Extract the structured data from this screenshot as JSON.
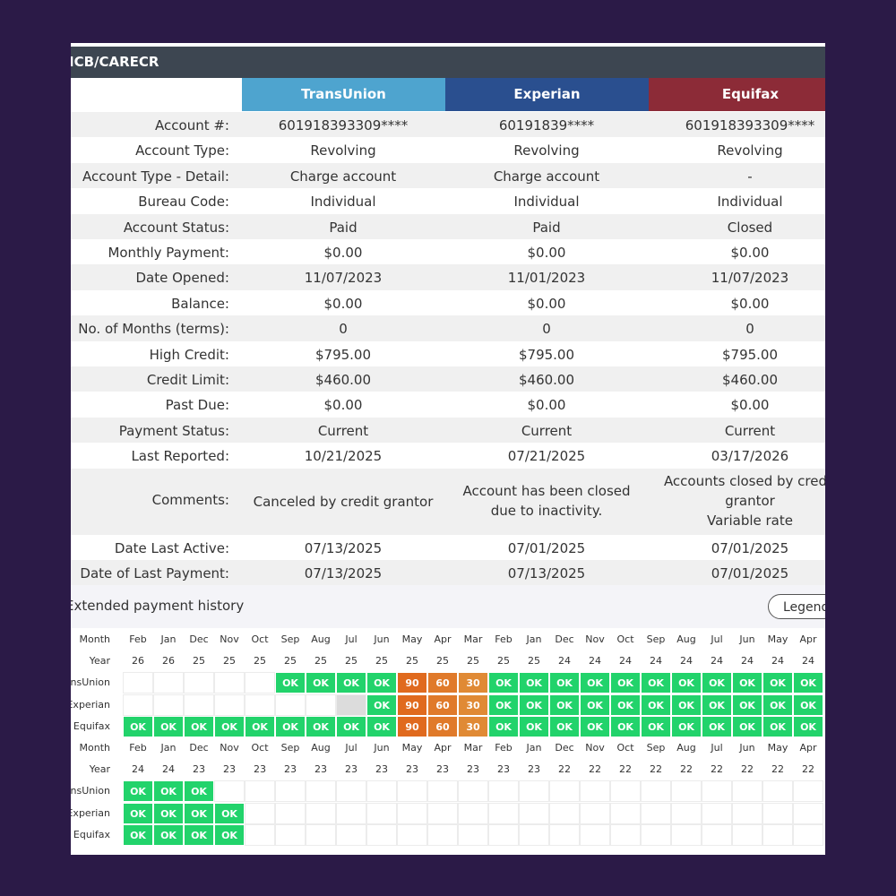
{
  "account_header": "ICB/CARECR",
  "bureaus": [
    {
      "name": "TransUnion",
      "color": "#4ea4cf"
    },
    {
      "name": "Experian",
      "color": "#2a4f8f"
    },
    {
      "name": "Equifax",
      "color": "#8c2b37"
    }
  ],
  "rows": [
    {
      "label": "Account #:",
      "values": [
        "601918393309****",
        "60191839****",
        "601918393309****"
      ]
    },
    {
      "label": "Account Type:",
      "values": [
        "Revolving",
        "Revolving",
        "Revolving"
      ]
    },
    {
      "label": "Account Type - Detail:",
      "values": [
        "Charge account",
        "Charge account",
        "-"
      ]
    },
    {
      "label": "Bureau Code:",
      "values": [
        "Individual",
        "Individual",
        "Individual"
      ]
    },
    {
      "label": "Account Status:",
      "values": [
        "Paid",
        "Paid",
        "Closed"
      ]
    },
    {
      "label": "Monthly Payment:",
      "values": [
        "$0.00",
        "$0.00",
        "$0.00"
      ]
    },
    {
      "label": "Date Opened:",
      "values": [
        "11/07/2023",
        "11/01/2023",
        "11/07/2023"
      ]
    },
    {
      "label": "Balance:",
      "values": [
        "$0.00",
        "$0.00",
        "$0.00"
      ]
    },
    {
      "label": "No. of Months (terms):",
      "values": [
        "0",
        "0",
        "0"
      ]
    },
    {
      "label": "High Credit:",
      "values": [
        "$795.00",
        "$795.00",
        "$795.00"
      ]
    },
    {
      "label": "Credit Limit:",
      "values": [
        "$460.00",
        "$460.00",
        "$460.00"
      ]
    },
    {
      "label": "Past Due:",
      "values": [
        "$0.00",
        "$0.00",
        "$0.00"
      ]
    },
    {
      "label": "Payment Status:",
      "values": [
        "Current",
        "Current",
        "Current"
      ]
    },
    {
      "label": "Last Reported:",
      "values": [
        "10/21/2025",
        "07/21/2025",
        "03/17/2026"
      ]
    },
    {
      "label": "Comments:",
      "values": [
        "Canceled by credit grantor",
        "Account has been closed due to inactivity.",
        "Accounts closed by credit grantor\nVariable rate"
      ]
    },
    {
      "label": "Date Last Active:",
      "values": [
        "07/13/2025",
        "07/01/2025",
        "07/01/2025"
      ]
    },
    {
      "label": "Date of Last Payment:",
      "values": [
        "07/13/2025",
        "07/13/2025",
        "07/01/2025"
      ]
    }
  ],
  "history": {
    "title": "Extended payment history",
    "legend_label": "Legend",
    "month_label": "Month",
    "year_label": "Year",
    "status_colors": {
      "OK": "#22d36b",
      "90": "#e06a1e",
      "60": "#e07a2a",
      "30": "#e08a35",
      "empty": "#ffffff",
      "gray": "#dcdcdc"
    },
    "blocks": [
      {
        "months": [
          "Feb",
          "Jan",
          "Dec",
          "Nov",
          "Oct",
          "Sep",
          "Aug",
          "Jul",
          "Jun",
          "May",
          "Apr",
          "Mar",
          "Feb",
          "Jan",
          "Dec",
          "Nov",
          "Oct",
          "Sep",
          "Aug",
          "Jul",
          "Jun",
          "May",
          "Apr"
        ],
        "years": [
          "26",
          "26",
          "25",
          "25",
          "25",
          "25",
          "25",
          "25",
          "25",
          "25",
          "25",
          "25",
          "25",
          "25",
          "24",
          "24",
          "24",
          "24",
          "24",
          "24",
          "24",
          "24",
          "24"
        ],
        "rows": [
          {
            "bureau": "TransUnion",
            "cells": [
              "",
              "",
              "",
              "",
              "",
              "OK",
              "OK",
              "OK",
              "OK",
              "90",
              "60",
              "30",
              "OK",
              "OK",
              "OK",
              "OK",
              "OK",
              "OK",
              "OK",
              "OK",
              "OK",
              "OK",
              "OK"
            ]
          },
          {
            "bureau": "Experian",
            "cells": [
              "",
              "",
              "",
              "",
              "",
              "",
              "",
              "",
              "OK",
              "90",
              "60",
              "30",
              "OK",
              "OK",
              "OK",
              "OK",
              "OK",
              "OK",
              "OK",
              "OK",
              "OK",
              "OK",
              "OK"
            ]
          },
          {
            "bureau": "Equifax",
            "cells": [
              "OK",
              "OK",
              "OK",
              "OK",
              "OK",
              "OK",
              "OK",
              "OK",
              "OK",
              "90",
              "60",
              "30",
              "OK",
              "OK",
              "OK",
              "OK",
              "OK",
              "OK",
              "OK",
              "OK",
              "OK",
              "OK",
              "OK"
            ]
          }
        ]
      },
      {
        "months": [
          "Feb",
          "Jan",
          "Dec",
          "Nov",
          "Oct",
          "Sep",
          "Aug",
          "Jul",
          "Jun",
          "May",
          "Apr",
          "Mar",
          "Feb",
          "Jan",
          "Dec",
          "Nov",
          "Oct",
          "Sep",
          "Aug",
          "Jul",
          "Jun",
          "May",
          "Apr"
        ],
        "years": [
          "24",
          "24",
          "23",
          "23",
          "23",
          "23",
          "23",
          "23",
          "23",
          "23",
          "23",
          "23",
          "23",
          "23",
          "22",
          "22",
          "22",
          "22",
          "22",
          "22",
          "22",
          "22",
          "22"
        ],
        "rows": [
          {
            "bureau": "TransUnion",
            "cells": [
              "OK",
              "OK",
              "OK",
              "",
              "",
              "",
              "",
              "",
              "",
              "",
              "",
              "",
              "",
              "",
              "",
              "",
              "",
              "",
              "",
              "",
              "",
              "",
              ""
            ]
          },
          {
            "bureau": "Experian",
            "cells": [
              "OK",
              "OK",
              "OK",
              "OK",
              "",
              "",
              "",
              "",
              "",
              "",
              "",
              "",
              "",
              "",
              "",
              "",
              "",
              "",
              "",
              "",
              "",
              "",
              ""
            ]
          },
          {
            "bureau": "Equifax",
            "cells": [
              "OK",
              "OK",
              "OK",
              "OK",
              "",
              "",
              "",
              "",
              "",
              "",
              "",
              "",
              "",
              "",
              "",
              "",
              "",
              "",
              "",
              "",
              "",
              "",
              ""
            ]
          }
        ]
      }
    ]
  }
}
